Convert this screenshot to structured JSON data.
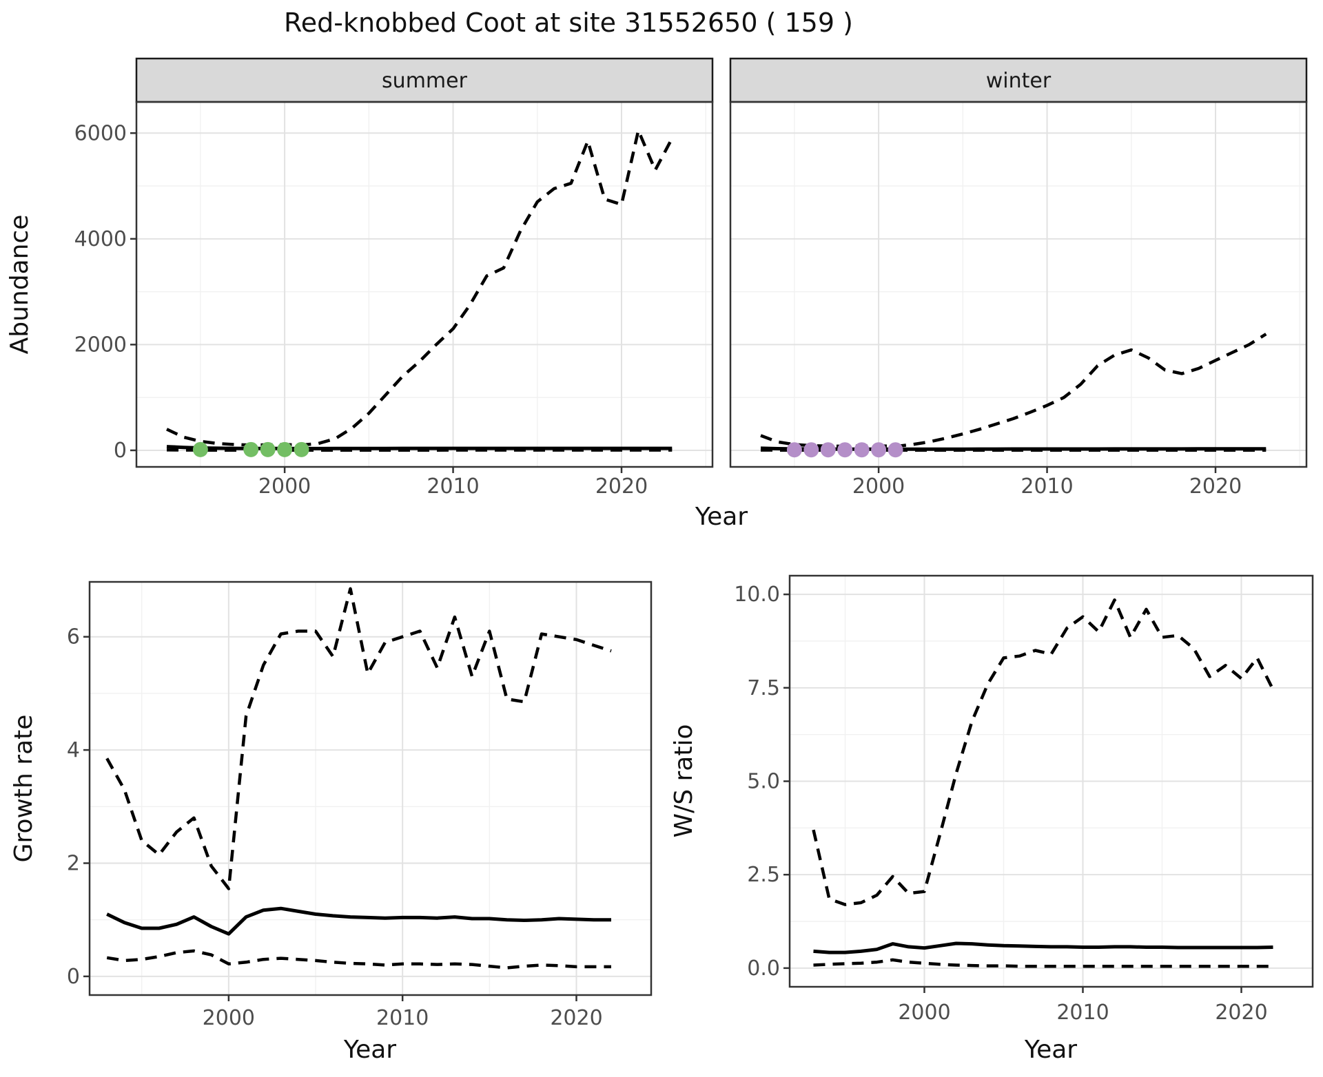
{
  "title": "Red-knobbed Coot at site 31552650 ( 159 )",
  "colors": {
    "summer_points": "#73BE64",
    "winter_points": "#B48EC8",
    "line": "#000000",
    "strip_fill": "#D9D9D9",
    "strip_border": "#1A1A1A",
    "panel_border": "#333333",
    "panel_bg": "#FFFFFF",
    "grid_major": "#E2E2E2",
    "grid_minor": "#F1F1F1",
    "tick_mark": "#333333",
    "tick_label": "#4D4D4D"
  },
  "chart_data": [
    {
      "id": "abundance-summer",
      "type": "line",
      "facet_label": "summer",
      "xlabel": "Year",
      "ylabel": "Abundance",
      "x": [
        1993,
        1994,
        1995,
        1996,
        1997,
        1998,
        1999,
        2000,
        2001,
        2002,
        2003,
        2004,
        2005,
        2006,
        2007,
        2008,
        2009,
        2010,
        2011,
        2012,
        2013,
        2014,
        2015,
        2016,
        2017,
        2018,
        2019,
        2020,
        2021,
        2022,
        2023
      ],
      "series": [
        {
          "name": "upper_ci",
          "style": "dashed",
          "values": [
            400,
            250,
            170,
            130,
            110,
            100,
            105,
            110,
            100,
            130,
            220,
            420,
            700,
            1050,
            1400,
            1680,
            2000,
            2300,
            2750,
            3300,
            3450,
            4150,
            4700,
            4950,
            5050,
            5850,
            4750,
            4650,
            6050,
            5300,
            5900
          ]
        },
        {
          "name": "median",
          "style": "solid",
          "values": [
            70,
            55,
            45,
            40,
            38,
            36,
            35,
            35,
            34,
            34,
            35,
            35,
            36,
            36,
            37,
            37,
            38,
            38,
            38,
            38,
            38,
            38,
            38,
            38,
            38,
            38,
            38,
            38,
            38,
            38,
            38
          ]
        },
        {
          "name": "lower_ci",
          "style": "dashed",
          "values": [
            8,
            5,
            4,
            3,
            3,
            3,
            3,
            3,
            3,
            3,
            3,
            3,
            3,
            4,
            4,
            4,
            4,
            5,
            5,
            5,
            5,
            5,
            5,
            5,
            5,
            5,
            5,
            5,
            5,
            5,
            5
          ]
        }
      ],
      "points": {
        "name": "observed_counts",
        "color_key": "summer_points",
        "x": [
          1995,
          1998,
          1999,
          2000,
          2001
        ],
        "y": [
          15,
          15,
          15,
          15,
          15
        ]
      },
      "xticks": {
        "values": [
          2000,
          2010,
          2020
        ],
        "labels": [
          "2000",
          "2010",
          "2020"
        ]
      },
      "yticks": {
        "values": [
          0,
          2000,
          4000,
          6000
        ],
        "labels": [
          "0",
          "2000",
          "4000",
          "6000"
        ]
      },
      "x_minor": [
        1995,
        2005,
        2015,
        2025
      ],
      "y_minor": [
        1000,
        3000,
        5000
      ],
      "xlim": [
        1991.2,
        2025.4
      ],
      "ylim": [
        -313,
        6590
      ],
      "show_ytick_labels": true,
      "grid": true,
      "legend": "none"
    },
    {
      "id": "abundance-winter",
      "type": "line",
      "facet_label": "winter",
      "xlabel": "Year",
      "ylabel": "Abundance",
      "x": [
        1993,
        1994,
        1995,
        1996,
        1997,
        1998,
        1999,
        2000,
        2001,
        2002,
        2003,
        2004,
        2005,
        2006,
        2007,
        2008,
        2009,
        2010,
        2011,
        2012,
        2013,
        2014,
        2015,
        2016,
        2017,
        2018,
        2019,
        2020,
        2021,
        2022,
        2023
      ],
      "series": [
        {
          "name": "upper_ci",
          "style": "dashed",
          "values": [
            280,
            160,
            110,
            90,
            80,
            78,
            82,
            85,
            75,
            110,
            160,
            230,
            310,
            400,
            500,
            600,
            720,
            850,
            1000,
            1250,
            1600,
            1800,
            1900,
            1750,
            1520,
            1450,
            1550,
            1700,
            1850,
            2000,
            2200
          ]
        },
        {
          "name": "median",
          "style": "solid",
          "values": [
            40,
            32,
            28,
            25,
            24,
            23,
            23,
            23,
            22,
            22,
            22,
            23,
            23,
            24,
            24,
            25,
            25,
            25,
            26,
            26,
            26,
            27,
            27,
            27,
            27,
            27,
            28,
            28,
            28,
            28,
            28
          ]
        },
        {
          "name": "lower_ci",
          "style": "dashed",
          "values": [
            5,
            3,
            2,
            2,
            2,
            2,
            2,
            2,
            2,
            2,
            2,
            2,
            2,
            2,
            2,
            2,
            2,
            2,
            2,
            2,
            2,
            2,
            2,
            2,
            2,
            2,
            2,
            2,
            2,
            2,
            2
          ]
        }
      ],
      "points": {
        "name": "observed_counts",
        "color_key": "winter_points",
        "x": [
          1995,
          1996,
          1997,
          1998,
          1999,
          2000,
          2001
        ],
        "y": [
          10,
          10,
          10,
          10,
          10,
          10,
          10
        ]
      },
      "xticks": {
        "values": [
          2000,
          2010,
          2020
        ],
        "labels": [
          "2000",
          "2010",
          "2020"
        ]
      },
      "yticks": {
        "values": [
          0,
          2000,
          4000,
          6000
        ],
        "labels": [
          "0",
          "2000",
          "4000",
          "6000"
        ]
      },
      "x_minor": [
        1995,
        2005,
        2015,
        2025
      ],
      "y_minor": [
        1000,
        3000,
        5000
      ],
      "xlim": [
        1991.2,
        2025.4
      ],
      "ylim": [
        -313,
        6590
      ],
      "show_ytick_labels": false,
      "grid": true,
      "legend": "none"
    },
    {
      "id": "growth-rate",
      "type": "line",
      "facet_label": "",
      "xlabel": "Year",
      "ylabel": "Growth rate",
      "x": [
        1993,
        1994,
        1995,
        1996,
        1997,
        1998,
        1999,
        2000,
        2001,
        2002,
        2003,
        2004,
        2005,
        2006,
        2007,
        2008,
        2009,
        2010,
        2011,
        2012,
        2013,
        2014,
        2015,
        2016,
        2017,
        2018,
        2019,
        2020,
        2021,
        2022
      ],
      "series": [
        {
          "name": "upper_ci",
          "style": "dashed",
          "values": [
            3.85,
            3.3,
            2.4,
            2.15,
            2.55,
            2.8,
            1.95,
            1.55,
            4.6,
            5.5,
            6.05,
            6.1,
            6.1,
            5.65,
            6.85,
            5.35,
            5.9,
            6.0,
            6.1,
            5.45,
            6.35,
            5.3,
            6.1,
            4.9,
            4.85,
            6.05,
            6.0,
            5.95,
            5.85,
            5.75
          ]
        },
        {
          "name": "median",
          "style": "solid",
          "values": [
            1.1,
            0.95,
            0.85,
            0.85,
            0.92,
            1.05,
            0.88,
            0.75,
            1.05,
            1.17,
            1.2,
            1.15,
            1.1,
            1.07,
            1.05,
            1.04,
            1.03,
            1.04,
            1.04,
            1.03,
            1.05,
            1.02,
            1.02,
            1.0,
            0.99,
            1.0,
            1.02,
            1.01,
            1.0,
            1.0
          ]
        },
        {
          "name": "lower_ci",
          "style": "dashed",
          "values": [
            0.33,
            0.28,
            0.3,
            0.35,
            0.42,
            0.45,
            0.38,
            0.22,
            0.25,
            0.3,
            0.32,
            0.3,
            0.28,
            0.25,
            0.23,
            0.22,
            0.2,
            0.22,
            0.22,
            0.21,
            0.22,
            0.21,
            0.18,
            0.15,
            0.18,
            0.2,
            0.19,
            0.17,
            0.17,
            0.17
          ]
        }
      ],
      "xticks": {
        "values": [
          2000,
          2010,
          2020
        ],
        "labels": [
          "2000",
          "2010",
          "2020"
        ]
      },
      "yticks": {
        "values": [
          0,
          2,
          4,
          6
        ],
        "labels": [
          "0",
          "2",
          "4",
          "6"
        ]
      },
      "x_minor": [
        1995,
        2005,
        2015
      ],
      "y_minor": [
        1,
        3,
        5
      ],
      "xlim": [
        1992.0,
        2024.3
      ],
      "ylim": [
        -0.33,
        6.97
      ],
      "show_ytick_labels": true,
      "grid": true,
      "legend": "none"
    },
    {
      "id": "ws-ratio",
      "type": "line",
      "facet_label": "",
      "xlabel": "Year",
      "ylabel": "W/S ratio",
      "x": [
        1993,
        1994,
        1995,
        1996,
        1997,
        1998,
        1999,
        2000,
        2001,
        2002,
        2003,
        2004,
        2005,
        2006,
        2007,
        2008,
        2009,
        2010,
        2011,
        2012,
        2013,
        2014,
        2015,
        2016,
        2017,
        2018,
        2019,
        2020,
        2021,
        2022
      ],
      "series": [
        {
          "name": "upper_ci",
          "style": "dashed",
          "values": [
            3.7,
            1.85,
            1.7,
            1.75,
            1.95,
            2.45,
            2.0,
            2.05,
            3.6,
            5.2,
            6.6,
            7.6,
            8.3,
            8.35,
            8.5,
            8.4,
            9.1,
            9.4,
            9.0,
            9.85,
            8.85,
            9.6,
            8.85,
            8.9,
            8.55,
            7.8,
            8.1,
            7.75,
            8.3,
            7.45
          ]
        },
        {
          "name": "median",
          "style": "solid",
          "values": [
            0.45,
            0.42,
            0.42,
            0.45,
            0.5,
            0.65,
            0.57,
            0.54,
            0.6,
            0.66,
            0.65,
            0.62,
            0.6,
            0.59,
            0.58,
            0.57,
            0.57,
            0.56,
            0.56,
            0.57,
            0.57,
            0.56,
            0.56,
            0.55,
            0.55,
            0.55,
            0.55,
            0.55,
            0.55,
            0.56
          ]
        },
        {
          "name": "lower_ci",
          "style": "dashed",
          "values": [
            0.08,
            0.1,
            0.12,
            0.13,
            0.16,
            0.22,
            0.16,
            0.13,
            0.1,
            0.08,
            0.07,
            0.06,
            0.06,
            0.05,
            0.05,
            0.05,
            0.05,
            0.05,
            0.05,
            0.05,
            0.05,
            0.05,
            0.05,
            0.05,
            0.05,
            0.05,
            0.05,
            0.05,
            0.05,
            0.05
          ]
        }
      ],
      "xticks": {
        "values": [
          2000,
          2010,
          2020
        ],
        "labels": [
          "2000",
          "2010",
          "2020"
        ]
      },
      "yticks": {
        "values": [
          0,
          2.5,
          5,
          7.5,
          10
        ],
        "labels": [
          "0.0",
          "2.5",
          "5.0",
          "7.5",
          "10.0"
        ]
      },
      "x_minor": [
        1995,
        2005,
        2015
      ],
      "y_minor": [
        1.25,
        3.75,
        6.25,
        8.75
      ],
      "xlim": [
        1991.5,
        2024.5
      ],
      "ylim": [
        -0.5,
        10.5
      ],
      "show_ytick_labels": true,
      "grid": true,
      "legend": "none"
    }
  ]
}
